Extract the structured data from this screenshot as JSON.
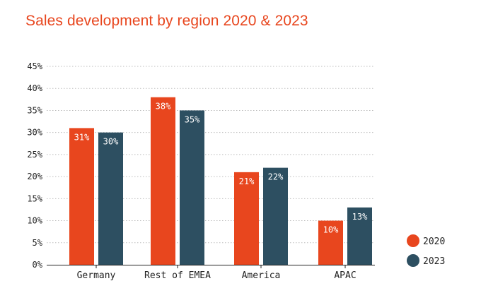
{
  "chart_data": {
    "type": "bar",
    "title": "Sales development by region 2020 & 2023",
    "xlabel": "",
    "ylabel": "",
    "categories": [
      "Germany",
      "Rest of EMEA",
      "America",
      "APAC"
    ],
    "series": [
      {
        "name": "2020",
        "values": [
          31,
          38,
          21,
          10
        ],
        "labels": [
          "31%",
          "38%",
          "21%",
          "10%"
        ],
        "color": "#e8461e"
      },
      {
        "name": "2023",
        "values": [
          30,
          35,
          22,
          13
        ],
        "labels": [
          "30%",
          "35%",
          "22%",
          "13%"
        ],
        "color": "#2d4f61"
      }
    ],
    "ylim": [
      0,
      45
    ],
    "yticks": [
      "0%",
      "5%",
      "10%",
      "15%",
      "20%",
      "25%",
      "30%",
      "35%",
      "40%",
      "45%"
    ],
    "grid": true,
    "legend": "bottom-right"
  }
}
